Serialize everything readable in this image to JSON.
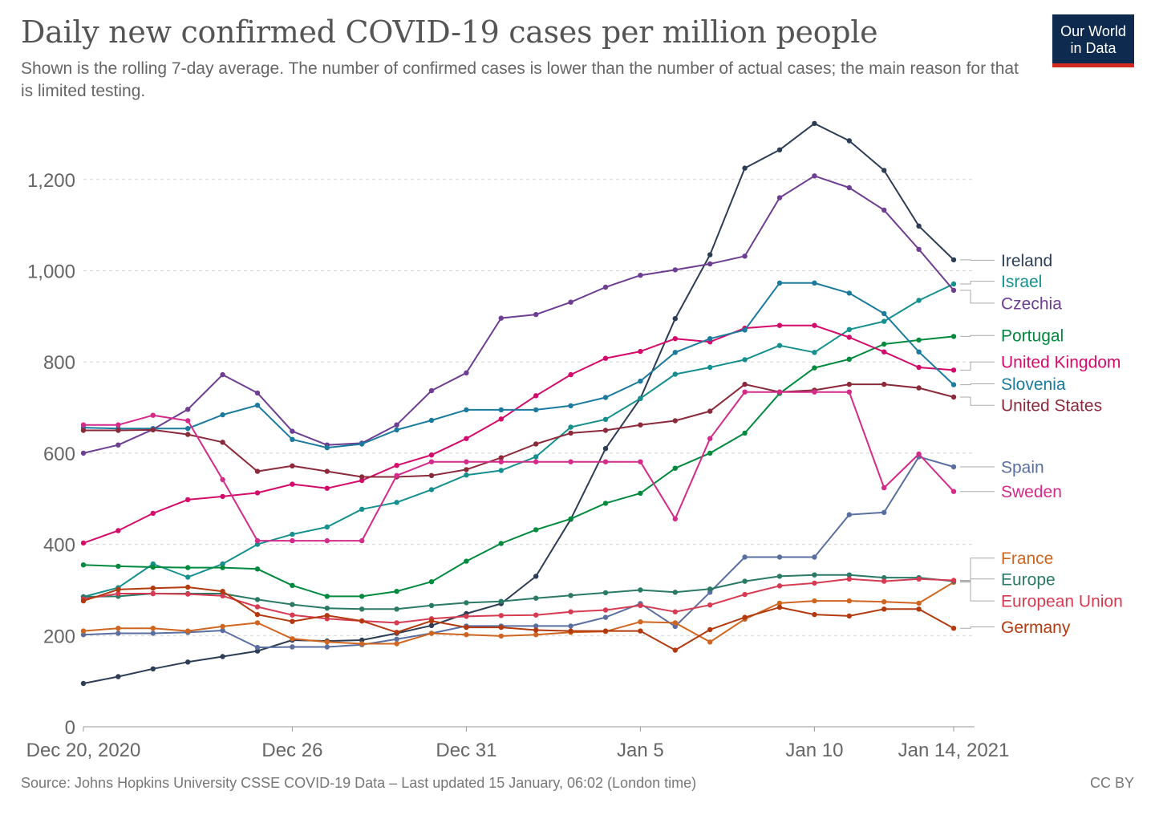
{
  "header": {
    "title": "Daily new confirmed COVID-19 cases per million people",
    "subtitle": "Shown is the rolling 7-day average. The number of confirmed cases is lower than the number of actual cases; the main reason for that is limited testing."
  },
  "logo": {
    "line1": "Our World",
    "line2": "in Data",
    "bg_color": "#0e2a4e",
    "bar_color": "#d42b21"
  },
  "footer": {
    "source": "Source: Johns Hopkins University CSSE COVID-19 Data – Last updated 15 January, 06:02 (London time)",
    "license": "CC BY"
  },
  "chart_data": {
    "type": "line",
    "title": "Daily new confirmed COVID-19 cases per million people",
    "xlabel": "",
    "ylabel": "",
    "x": [
      "2020-12-20",
      "2020-12-21",
      "2020-12-22",
      "2020-12-23",
      "2020-12-24",
      "2020-12-25",
      "2020-12-26",
      "2020-12-27",
      "2020-12-28",
      "2020-12-29",
      "2020-12-30",
      "2020-12-31",
      "2021-01-01",
      "2021-01-02",
      "2021-01-03",
      "2021-01-04",
      "2021-01-05",
      "2021-01-06",
      "2021-01-07",
      "2021-01-08",
      "2021-01-09",
      "2021-01-10",
      "2021-01-11",
      "2021-01-12",
      "2021-01-13",
      "2021-01-14"
    ],
    "x_ticks": [
      {
        "index": 0,
        "label": "Dec 20, 2020"
      },
      {
        "index": 6,
        "label": "Dec 26"
      },
      {
        "index": 11,
        "label": "Dec 31"
      },
      {
        "index": 16,
        "label": "Jan 5"
      },
      {
        "index": 21,
        "label": "Jan 10"
      },
      {
        "index": 25,
        "label": "Jan 14, 2021"
      }
    ],
    "y_ticks": [
      {
        "value": 0,
        "label": "0"
      },
      {
        "value": 200,
        "label": "200"
      },
      {
        "value": 400,
        "label": "400"
      },
      {
        "value": 600,
        "label": "600"
      },
      {
        "value": 800,
        "label": "800"
      },
      {
        "value": 1000,
        "label": "1,000"
      },
      {
        "value": 1200,
        "label": "1,200"
      }
    ],
    "ylim": [
      0,
      1330
    ],
    "grid": "horizontal dashed",
    "legend": "right, end labels",
    "series": [
      {
        "name": "Ireland",
        "color": "#2d3d55",
        "label_value": 1023,
        "values": [
          95,
          110,
          127,
          142,
          154,
          166,
          190,
          188,
          190,
          205,
          222,
          248,
          270,
          330,
          455,
          610,
          720,
          895,
          1035,
          1225,
          1265,
          1323,
          1285,
          1220,
          1098,
          1024
        ]
      },
      {
        "name": "Israel",
        "color": "#168f8f",
        "label_value": 977,
        "values": [
          285,
          305,
          357,
          328,
          357,
          400,
          422,
          438,
          477,
          492,
          520,
          552,
          562,
          592,
          657,
          674,
          720,
          773,
          788,
          805,
          836,
          821,
          871,
          889,
          935,
          971
        ]
      },
      {
        "name": "Czechia",
        "color": "#6d3e91",
        "label_value": 929,
        "values": [
          600,
          618,
          652,
          696,
          772,
          732,
          648,
          618,
          622,
          662,
          737,
          776,
          896,
          904,
          931,
          964,
          990,
          1002,
          1015,
          1032,
          1160,
          1208,
          1182,
          1133,
          1047,
          957
        ]
      },
      {
        "name": "Portugal",
        "color": "#008a3e",
        "label_value": 858,
        "values": [
          355,
          352,
          350,
          349,
          349,
          346,
          310,
          286,
          286,
          297,
          318,
          363,
          402,
          432,
          456,
          490,
          512,
          567,
          600,
          644,
          731,
          787,
          806,
          839,
          848,
          856
        ]
      },
      {
        "name": "United Kingdom",
        "color": "#d40b6a",
        "label_value": 800,
        "values": [
          403,
          430,
          468,
          498,
          505,
          513,
          532,
          523,
          540,
          573,
          596,
          632,
          675,
          726,
          772,
          808,
          823,
          851,
          844,
          874,
          880,
          880,
          854,
          822,
          788,
          782
        ]
      },
      {
        "name": "Slovenia",
        "color": "#1b7a9e",
        "label_value": 752,
        "values": [
          656,
          654,
          654,
          654,
          684,
          705,
          630,
          612,
          620,
          651,
          672,
          695,
          695,
          695,
          704,
          722,
          758,
          821,
          851,
          870,
          973,
          973,
          951,
          906,
          822,
          750
        ]
      },
      {
        "name": "United States",
        "color": "#8b2a3a",
        "label_value": 705,
        "values": [
          650,
          650,
          651,
          641,
          624,
          560,
          572,
          560,
          548,
          548,
          551,
          564,
          590,
          620,
          644,
          650,
          662,
          671,
          692,
          751,
          734,
          738,
          751,
          751,
          743,
          723
        ]
      },
      {
        "name": "Spain",
        "color": "#5a6fa0",
        "label_value": 570,
        "values": [
          202,
          205,
          205,
          207,
          211,
          174,
          175,
          175,
          180,
          192,
          205,
          221,
          221,
          221,
          221,
          240,
          270,
          220,
          295,
          372,
          372,
          372,
          465,
          470,
          592,
          570
        ]
      },
      {
        "name": "Sweden",
        "color": "#d42a8a",
        "label_value": 516,
        "values": [
          662,
          662,
          683,
          671,
          542,
          408,
          408,
          408,
          408,
          551,
          581,
          581,
          581,
          581,
          581,
          581,
          581,
          456,
          632,
          734,
          734,
          734,
          734,
          524,
          598,
          516
        ]
      },
      {
        "name": "France",
        "color": "#d06520",
        "label_value": 370,
        "values": [
          210,
          216,
          216,
          210,
          220,
          228,
          193,
          186,
          182,
          182,
          205,
          202,
          199,
          202,
          207,
          209,
          230,
          228,
          186,
          236,
          271,
          276,
          276,
          274,
          271,
          317
        ]
      },
      {
        "name": "Europe",
        "color": "#2a7a66",
        "label_value": 324,
        "values": [
          285,
          286,
          292,
          292,
          292,
          279,
          268,
          260,
          258,
          258,
          266,
          272,
          275,
          282,
          288,
          294,
          300,
          295,
          302,
          319,
          330,
          333,
          333,
          327,
          327,
          319
        ]
      },
      {
        "name": "European Union",
        "color": "#d73b52",
        "label_value": 276,
        "values": [
          280,
          292,
          292,
          291,
          287,
          263,
          245,
          237,
          232,
          228,
          237,
          242,
          244,
          245,
          252,
          256,
          266,
          252,
          267,
          290,
          309,
          315,
          324,
          319,
          324,
          321
        ]
      },
      {
        "name": "Germany",
        "color": "#b33a0f",
        "label_value": 219,
        "values": [
          276,
          301,
          304,
          306,
          297,
          246,
          231,
          244,
          232,
          207,
          232,
          218,
          218,
          212,
          210,
          210,
          210,
          168,
          213,
          240,
          262,
          246,
          243,
          258,
          258,
          216
        ]
      }
    ]
  }
}
